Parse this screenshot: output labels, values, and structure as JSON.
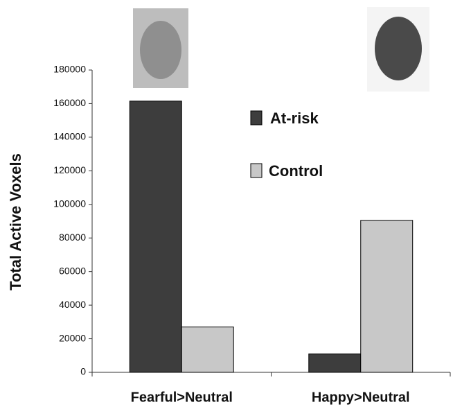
{
  "chart_data": {
    "type": "bar",
    "y_label": "Total Active Voxels",
    "categories": [
      "Fearful>Neutral",
      "Happy>Neutral"
    ],
    "series": [
      {
        "name": "At-risk",
        "color": "#3d3d3d",
        "values": [
          161500,
          11000
        ]
      },
      {
        "name": "Control",
        "color": "#c8c8c8",
        "values": [
          27000,
          90500
        ]
      }
    ],
    "ylim": [
      0,
      180000
    ],
    "yticks": [
      0,
      20000,
      40000,
      60000,
      80000,
      100000,
      120000,
      140000,
      160000,
      180000
    ],
    "grid": false
  }
}
